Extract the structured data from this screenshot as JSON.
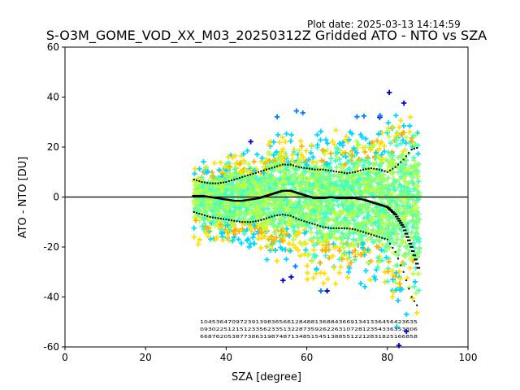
{
  "header": {
    "plot_date": "Plot date: 2025-03-13 14:14:59",
    "title": "S-O3M_GOME_VOD_XX_M03_20250312Z Gridded ATO - NTO vs SZA"
  },
  "chart_data": {
    "type": "scatter",
    "title": "S-O3M_GOME_VOD_XX_M03_20250312Z Gridded ATO - NTO vs SZA",
    "xlabel": "SZA [degree]",
    "ylabel": "ATO - NTO [DU]",
    "xlim": [
      0,
      100
    ],
    "ylim": [
      -60,
      60
    ],
    "xticks": [
      0,
      20,
      40,
      60,
      80,
      100
    ],
    "yticks": [
      -60,
      -40,
      -20,
      0,
      20,
      40,
      60
    ],
    "grid": false,
    "marker": "+",
    "reference_line_y": 0,
    "point_colors": [
      "#0000cc",
      "#0080ff",
      "#00d8ff",
      "#40ffc0",
      "#80ff80",
      "#c0ff40",
      "#ffe000",
      "#ffb000"
    ],
    "scatter_bands": [
      {
        "sza_min": 32,
        "sza_max": 40,
        "upper": 15,
        "lower": -20
      },
      {
        "sza_min": 40,
        "sza_max": 50,
        "upper": 20,
        "lower": -22
      },
      {
        "sza_min": 50,
        "sza_max": 60,
        "upper": 30,
        "lower": -28
      },
      {
        "sza_min": 60,
        "sza_max": 70,
        "upper": 28,
        "lower": -38
      },
      {
        "sza_min": 70,
        "sza_max": 80,
        "upper": 32,
        "lower": -40
      },
      {
        "sza_min": 80,
        "sza_max": 88,
        "upper": 38,
        "lower": -55
      }
    ],
    "series": [
      {
        "style": "dotted",
        "x": [
          32,
          34,
          36,
          38,
          40,
          42,
          44,
          46,
          48,
          50,
          52,
          54,
          56,
          58,
          60,
          62,
          64,
          66,
          68,
          70,
          72,
          74,
          76,
          78,
          80,
          82,
          84,
          86,
          88
        ],
        "y": [
          7,
          6,
          5.5,
          5.5,
          6,
          7,
          8,
          9,
          10,
          11,
          12,
          13,
          13,
          12,
          11.5,
          11,
          11,
          10.5,
          10,
          9.5,
          10,
          11,
          11.5,
          11,
          10,
          12,
          15,
          19,
          20
        ]
      },
      {
        "style": "solid",
        "x": [
          32,
          34,
          36,
          38,
          40,
          42,
          44,
          46,
          48,
          50,
          52,
          54,
          56,
          58,
          60,
          62,
          64,
          66,
          68,
          70,
          72,
          74,
          76,
          78,
          80,
          82,
          84,
          86,
          88
        ],
        "y": [
          0.5,
          0.5,
          0,
          -0.5,
          -1,
          -1.5,
          -1.5,
          -1,
          -0.5,
          0.5,
          1.5,
          2.5,
          2.5,
          1.5,
          0.5,
          -0.5,
          -0.5,
          0,
          -0.5,
          -0.5,
          -0.5,
          -1,
          -2,
          -3,
          -4,
          -7,
          -12,
          -20,
          -30
        ]
      },
      {
        "style": "dotted",
        "x": [
          32,
          34,
          36,
          38,
          40,
          42,
          44,
          46,
          48,
          50,
          52,
          54,
          56,
          58,
          60,
          62,
          64,
          66,
          68,
          70,
          72,
          74,
          76,
          78,
          80,
          82,
          84,
          86,
          88
        ],
        "y": [
          -6,
          -7,
          -8,
          -8.5,
          -9,
          -9.5,
          -10,
          -10,
          -9.5,
          -8.5,
          -7.5,
          -7,
          -7.5,
          -9,
          -10,
          -11,
          -12,
          -12.5,
          -12.5,
          -12.5,
          -13,
          -14,
          -15,
          -16,
          -17,
          -22,
          -30,
          -40,
          -45
        ]
      }
    ],
    "count_rows": [
      "1045364709723913983656612848813688436691341336456423635",
      "0930225121512335623351322873592622631072812354336353306",
      "6687620538773863198748713485154513885512212831825166858"
    ]
  }
}
